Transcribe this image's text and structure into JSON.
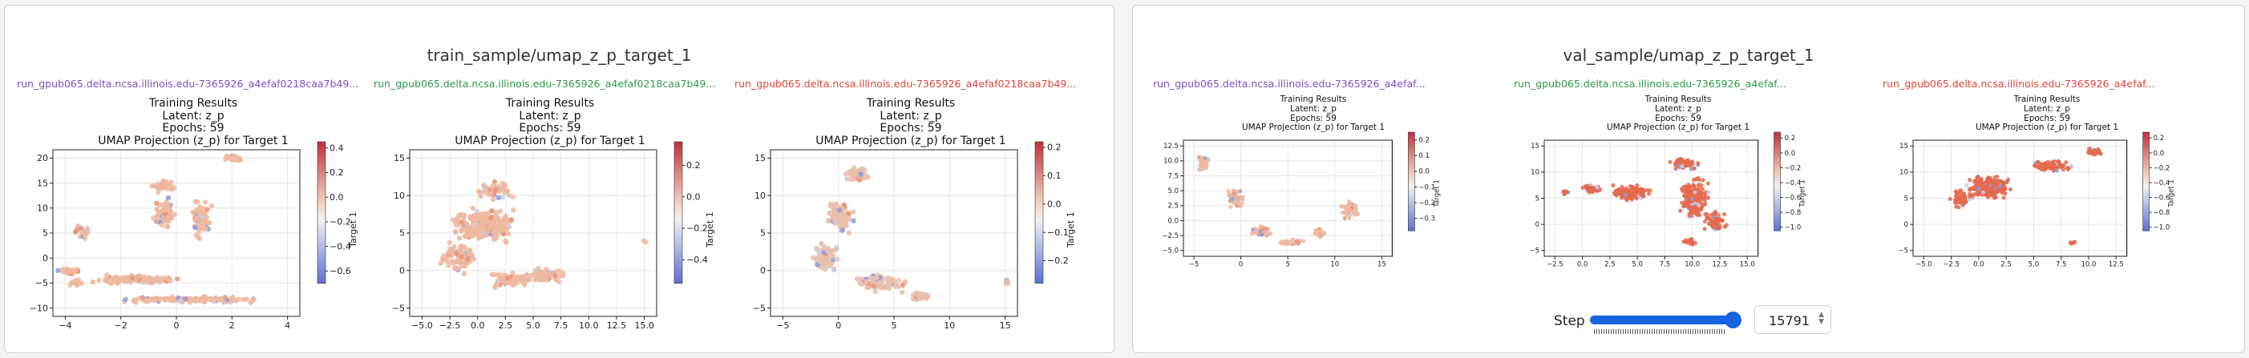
{
  "colors": {
    "run_purple": "#7b4fbf",
    "run_green": "#2e9a4a",
    "run_red": "#e0443a",
    "pos": "#d6604d",
    "neg": "#6a7ad6",
    "neutral": "#f0f0f0"
  },
  "panels": [
    {
      "title": "train_sample/umap_z_p_target_1",
      "plots": [
        {
          "run": "run_gpub065.delta.ncsa.illinois.edu-7365926_a4efaf0218caa7b49...",
          "run_color": "run_purple",
          "title_lines": [
            "Training Results",
            "Latent: z_p",
            "Epochs: 59",
            "UMAP Projection (z_p) for Target 1"
          ],
          "x_ticks": [
            "−4",
            "−2",
            "0",
            "2",
            "4"
          ],
          "y_ticks": [
            "−10",
            "−5",
            "0",
            "5",
            "10",
            "15",
            "20"
          ],
          "cbar_ticks": [
            "0.4",
            "0.2",
            "0.0",
            "−0.2",
            "−0.4",
            "−0.6"
          ],
          "cbar_label": "Target 1",
          "cbar_min": -0.7,
          "cbar_max": 0.45
        },
        {
          "run": "run_gpub065.delta.ncsa.illinois.edu-7365926_a4efaf0218caa7b49...",
          "run_color": "run_green",
          "title_lines": [
            "Training Results",
            "Latent: z_p",
            "Epochs: 59",
            "UMAP Projection (z_p) for Target 1"
          ],
          "x_ticks": [
            "−5.0",
            "−2.5",
            "0.0",
            "2.5",
            "5.0",
            "7.5",
            "10.0",
            "12.5",
            "15.0"
          ],
          "y_ticks": [
            "−5",
            "0",
            "5",
            "10",
            "15"
          ],
          "cbar_ticks": [
            "0.2",
            "0.0",
            "−0.2",
            "−0.4"
          ],
          "cbar_label": "Target 1",
          "cbar_min": -0.55,
          "cbar_max": 0.35
        },
        {
          "run": "run_gpub065.delta.ncsa.illinois.edu-7365926_a4efaf0218caa7b49...",
          "run_color": "run_red",
          "title_lines": [
            "Training Results",
            "Latent: z_p",
            "Epochs: 59",
            "UMAP Projection (z_p) for Target 1"
          ],
          "x_ticks": [
            "−5",
            "0",
            "5",
            "10",
            "15"
          ],
          "y_ticks": [
            "−5",
            "0",
            "5",
            "10",
            "15"
          ],
          "cbar_ticks": [
            "0.2",
            "0.1",
            "0.0",
            "−0.1",
            "−0.2"
          ],
          "cbar_label": "Target 1",
          "cbar_min": -0.28,
          "cbar_max": 0.22
        }
      ]
    },
    {
      "title": "val_sample/umap_z_p_target_1",
      "plots": [
        {
          "run": "run_gpub065.delta.ncsa.illinois.edu-7365926_a4efaf...",
          "run_color": "run_purple",
          "title_lines": [
            "Training Results",
            "Latent: z_p",
            "Epochs: 59",
            "UMAP Projection (z_p) for Target 1"
          ],
          "x_ticks": [
            "−5",
            "0",
            "5",
            "10",
            "15"
          ],
          "y_ticks": [
            "−5.0",
            "−2.5",
            "0.0",
            "2.5",
            "5.0",
            "7.5",
            "10.0",
            "12.5"
          ],
          "cbar_ticks": [
            "0.2",
            "0.1",
            "0.0",
            "−0.1",
            "−0.2",
            "−0.3"
          ],
          "cbar_label": "Target 1",
          "cbar_min": -0.38,
          "cbar_max": 0.25
        },
        {
          "run": "run_gpub065.delta.ncsa.illinois.edu-7365926_a4efaf...",
          "run_color": "run_green",
          "title_lines": [
            "Training Results",
            "Latent: z_p",
            "Epochs: 59",
            "UMAP Projection (z_p) for Target 1"
          ],
          "x_ticks": [
            "−2.5",
            "0.0",
            "2.5",
            "5.0",
            "7.5",
            "10.0",
            "12.5",
            "15.0"
          ],
          "y_ticks": [
            "−5",
            "0",
            "5",
            "10",
            "15"
          ],
          "cbar_ticks": [
            "0.2",
            "0.0",
            "−0.2",
            "−0.4",
            "−0.6",
            "−0.8",
            "−1.0"
          ],
          "cbar_label": "Target 1",
          "cbar_min": -1.05,
          "cbar_max": 0.28
        },
        {
          "run": "run_gpub065.delta.ncsa.illinois.edu-7365926_a4efaf...",
          "run_color": "run_red",
          "title_lines": [
            "Training Results",
            "Latent: z_p",
            "Epochs: 59",
            "UMAP Projection (z_p) for Target 1"
          ],
          "x_ticks": [
            "−5.0",
            "−2.5",
            "0.0",
            "2.5",
            "5.0",
            "7.5",
            "10.0",
            "12.5"
          ],
          "y_ticks": [
            "−5",
            "0",
            "5",
            "10",
            "15"
          ],
          "cbar_ticks": [
            "0.2",
            "0.0",
            "−0.2",
            "−0.4",
            "−0.6",
            "−0.8",
            "−1.0"
          ],
          "cbar_label": "Target 1",
          "cbar_min": -1.05,
          "cbar_max": 0.28
        }
      ]
    }
  ],
  "step": {
    "label": "Step",
    "value": "15791",
    "slider_fraction": 1.0
  }
}
